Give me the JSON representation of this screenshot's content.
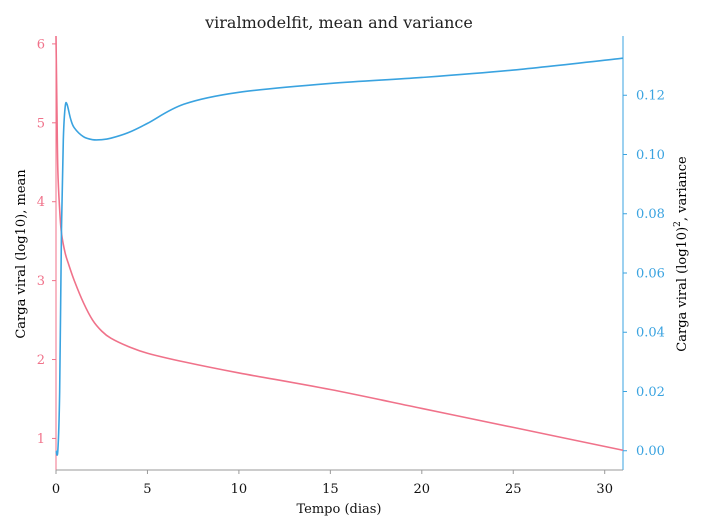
{
  "chart_data": {
    "type": "line",
    "title": "viralmodelfit, mean and variance",
    "xlabel": "Tempo (dias)",
    "x_ticks": [
      0,
      5,
      10,
      15,
      20,
      25,
      30
    ],
    "xlim": [
      0,
      31
    ],
    "grid": false,
    "colors": {
      "mean": "#f0728a",
      "variance": "#3aa3e0",
      "axis": "#999999"
    },
    "left_axis": {
      "label": "Carga viral (log10), mean",
      "ticks": [
        1,
        2,
        3,
        4,
        5,
        6
      ],
      "ylim": [
        0.6,
        6.1
      ]
    },
    "right_axis": {
      "label_main": "Carga viral (log10)",
      "label_sup": "2",
      "label_tail": ", variance",
      "ticks": [
        "0.00",
        "0.02",
        "0.04",
        "0.06",
        "0.08",
        "0.10",
        "0.12"
      ],
      "tick_values": [
        0,
        0.02,
        0.04,
        0.06,
        0.08,
        0.1,
        0.12
      ],
      "ylim": [
        -0.0065,
        0.14
      ]
    },
    "series": [
      {
        "axis": "left",
        "x": [
          0,
          0.05,
          0.1,
          0.2,
          0.3,
          0.5,
          0.7,
          1,
          1.5,
          2,
          2.5,
          3,
          4,
          5,
          7,
          10,
          15,
          20,
          25,
          31
        ],
        "y": [
          6.1,
          5.2,
          4.4,
          3.9,
          3.6,
          3.35,
          3.2,
          3.0,
          2.72,
          2.5,
          2.36,
          2.27,
          2.16,
          2.08,
          1.97,
          1.83,
          1.62,
          1.38,
          1.14,
          0.85
        ]
      },
      {
        "axis": "right",
        "x": [
          0,
          0.1,
          0.2,
          0.3,
          0.4,
          0.5,
          0.6,
          0.8,
          1,
          1.5,
          2,
          2.5,
          3,
          4,
          5,
          7,
          10,
          15,
          20,
          25,
          31
        ],
        "y": [
          0.0,
          0.0,
          0.02,
          0.075,
          0.105,
          0.116,
          0.117,
          0.112,
          0.109,
          0.106,
          0.105,
          0.105,
          0.1055,
          0.1075,
          0.1105,
          0.117,
          0.121,
          0.124,
          0.126,
          0.1285,
          0.1325
        ]
      }
    ]
  }
}
